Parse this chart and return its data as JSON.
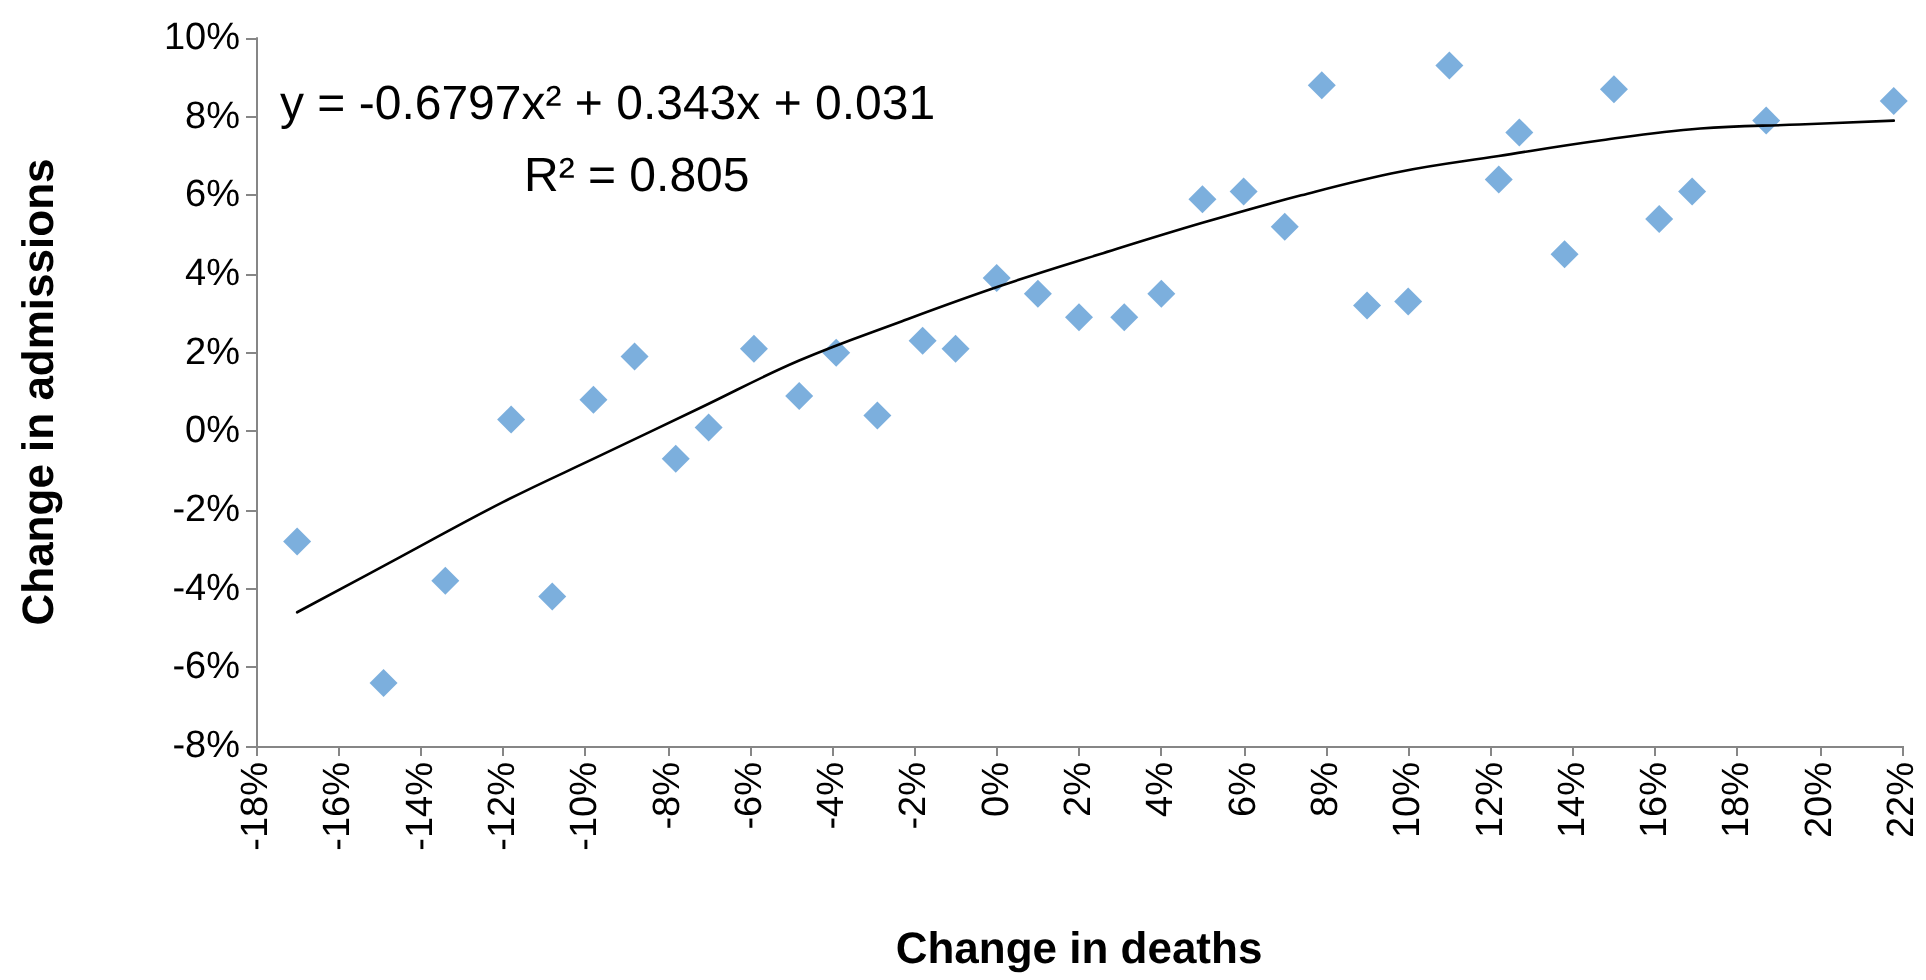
{
  "chart_data": {
    "type": "scatter",
    "xlabel": "Change in deaths",
    "ylabel": "Change in admissions",
    "annotations": [
      "y = -0.6797x² + 0.343x + 0.031",
      "R² = 0.805"
    ],
    "xlim": [
      -18,
      22
    ],
    "ylim": [
      -8,
      10
    ],
    "xticks": [
      {
        "value": -18,
        "label": "-18%"
      },
      {
        "value": -16,
        "label": "-16%"
      },
      {
        "value": -14,
        "label": "-14%"
      },
      {
        "value": -12,
        "label": "-12%"
      },
      {
        "value": -10,
        "label": "-10%"
      },
      {
        "value": -8,
        "label": "-8%"
      },
      {
        "value": -6,
        "label": "-6%"
      },
      {
        "value": -4,
        "label": "-4%"
      },
      {
        "value": -2,
        "label": "-2%"
      },
      {
        "value": 0,
        "label": "0%"
      },
      {
        "value": 2,
        "label": "2%"
      },
      {
        "value": 4,
        "label": "4%"
      },
      {
        "value": 6,
        "label": "6%"
      },
      {
        "value": 8,
        "label": "8%"
      },
      {
        "value": 10,
        "label": "10%"
      },
      {
        "value": 12,
        "label": "12%"
      },
      {
        "value": 14,
        "label": "14%"
      },
      {
        "value": 16,
        "label": "16%"
      },
      {
        "value": 18,
        "label": "18%"
      },
      {
        "value": 20,
        "label": "20%"
      },
      {
        "value": 22,
        "label": "22%"
      }
    ],
    "yticks": [
      {
        "value": -8,
        "label": "-8%"
      },
      {
        "value": -6,
        "label": "-6%"
      },
      {
        "value": -4,
        "label": "-4%"
      },
      {
        "value": -2,
        "label": "-2%"
      },
      {
        "value": 0,
        "label": "0%"
      },
      {
        "value": 2,
        "label": "2%"
      },
      {
        "value": 4,
        "label": "4%"
      },
      {
        "value": 6,
        "label": "6%"
      },
      {
        "value": 8,
        "label": "8%"
      },
      {
        "value": 10,
        "label": "10%"
      }
    ],
    "series": [
      {
        "color": "#5b9bd5",
        "marker": "diamond",
        "x": [
          -17,
          -14.9,
          -13.4,
          -11.8,
          -10.8,
          -9.8,
          -8.8,
          -7.8,
          -7,
          -5.9,
          -4.8,
          -3.9,
          -2.9,
          -1.8,
          -1,
          0,
          1,
          2,
          3.1,
          4,
          5,
          6,
          7,
          7.9,
          9,
          10,
          11,
          12.2,
          12.7,
          13.8,
          15,
          16.1,
          16.9,
          18.7,
          21.8
        ],
        "values": [
          -2.8,
          -6.4,
          -3.8,
          0.3,
          -4.2,
          0.8,
          1.9,
          -0.7,
          0.1,
          2.1,
          0.9,
          2,
          0.4,
          2.3,
          2.1,
          3.9,
          3.5,
          2.9,
          2.9,
          3.5,
          5.9,
          6.1,
          5.2,
          8.8,
          3.2,
          3.3,
          9.3,
          6.4,
          7.6,
          4.5,
          8.7,
          5.4,
          6.1,
          7.9,
          8.4
        ]
      },
      {
        "type": "line",
        "color": "#000000",
        "marker": "none",
        "line_style": "solid",
        "x": [
          -17,
          -14.5,
          -12,
          -9.6,
          -7.2,
          -4.8,
          -2.3,
          0.1,
          2.5,
          5,
          7.4,
          9.8,
          12.2,
          14.7,
          17.1,
          19.5,
          21.8
        ],
        "values": [
          -4.6,
          -3.2,
          -1.8,
          -0.6,
          0.6,
          1.8,
          2.8,
          3.7,
          4.5,
          5.3,
          6,
          6.6,
          7,
          7.4,
          7.7,
          7.8,
          7.9
        ]
      }
    ]
  }
}
